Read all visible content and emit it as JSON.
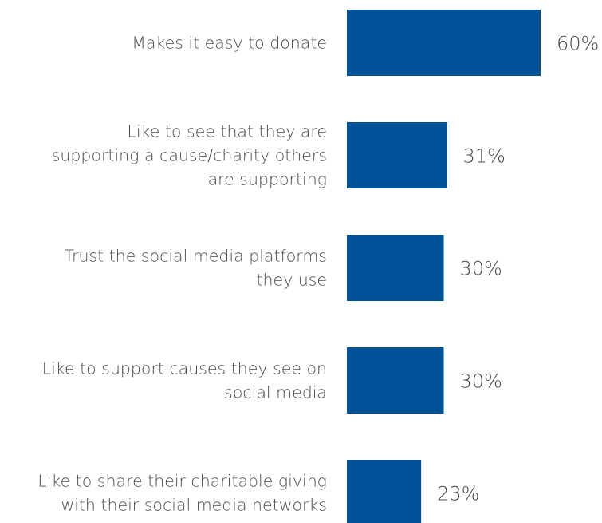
{
  "chart_data": {
    "type": "bar",
    "orientation": "horizontal",
    "categories": [
      "Makes it easy to donate",
      "Like to see that they are supporting a cause/charity others are supporting",
      "Trust the social media platforms they use",
      "Like to support causes they see on social media",
      "Like to share their charitable giving with their social media networks"
    ],
    "category_lines": [
      [
        "Makes it easy to donate"
      ],
      [
        "Like to see that they are",
        "supporting a cause/charity others",
        "are supporting"
      ],
      [
        "Trust the social media platforms",
        "they use"
      ],
      [
        "Like to support causes they see on",
        "social media"
      ],
      [
        "Like to share their charitable giving",
        "with their social media networks"
      ]
    ],
    "values": [
      60,
      31,
      30,
      30,
      23
    ],
    "value_labels": [
      "60%",
      "31%",
      "30%",
      "30%",
      "23%"
    ],
    "unit": "%",
    "bar_color": "#00529b",
    "text_color": "#4a4a4a",
    "xlim": [
      0,
      60
    ],
    "grid": false,
    "legend": "none"
  }
}
